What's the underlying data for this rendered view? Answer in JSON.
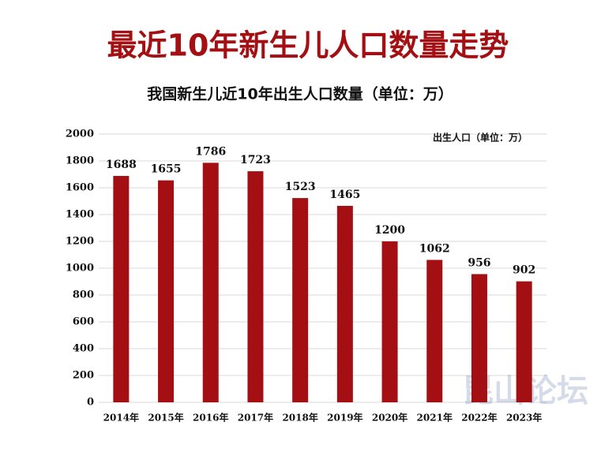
{
  "chart_data": {
    "type": "bar",
    "title": "最近10年新生儿人口数量走势",
    "subtitle": "我国新生儿近10年出生人口数量（单位：万）",
    "categories": [
      "2014年",
      "2015年",
      "2016年",
      "2017年",
      "2018年",
      "2019年",
      "2020年",
      "2021年",
      "2022年",
      "2023年"
    ],
    "series": [
      {
        "name": "出生人口（单位：万）",
        "color": "#a30f12",
        "values": [
          1688,
          1655,
          1786,
          1723,
          1523,
          1465,
          1200,
          1062,
          956,
          902
        ]
      }
    ],
    "ylim": [
      0,
      2000
    ],
    "yticks": [
      0,
      200,
      400,
      600,
      800,
      1000,
      1200,
      1400,
      1600,
      1800,
      2000
    ],
    "grid": true,
    "watermark": "昆山论坛"
  }
}
